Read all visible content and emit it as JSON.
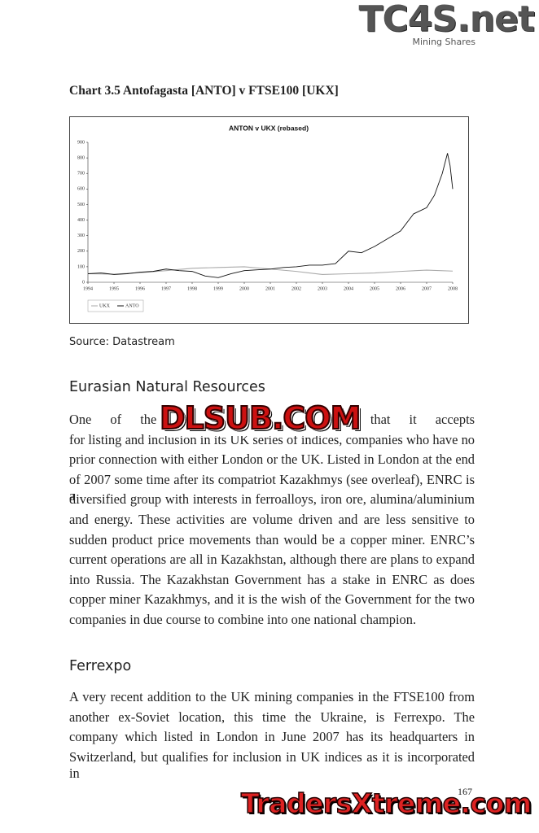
{
  "header": {
    "logo": "TC4S.net",
    "tagline": "Mining Shares"
  },
  "chart_caption": "Chart 3.5 Antofagasta [ANTO] v FTSE100 [UKX]",
  "chart_data": {
    "type": "line",
    "title": "ANTON v UKX (rebased)",
    "xlim": [
      1994,
      2008
    ],
    "xticks": [
      1994,
      1995,
      1996,
      1997,
      1998,
      1999,
      2000,
      2001,
      2002,
      2003,
      2004,
      2005,
      2006,
      2007,
      2008
    ],
    "ylim": [
      0,
      900
    ],
    "yticks": [
      0,
      100,
      200,
      300,
      400,
      500,
      600,
      700,
      800,
      900
    ],
    "legend": "bottom-left",
    "series": [
      {
        "name": "UKX",
        "color": "#aaaaaa",
        "x": [
          1994,
          1995,
          1996,
          1997,
          1998,
          1999,
          2000,
          2001,
          2002,
          2003,
          2004,
          2005,
          2006,
          2007,
          2008
        ],
        "values": [
          55,
          52,
          62,
          75,
          90,
          95,
          100,
          85,
          70,
          50,
          55,
          60,
          70,
          78,
          72
        ]
      },
      {
        "name": "ANTO",
        "color": "#111111",
        "x": [
          1994,
          1994.5,
          1995,
          1995.5,
          1996,
          1996.5,
          1997,
          1997.5,
          1998,
          1998.5,
          1999,
          1999.5,
          2000,
          2000.5,
          2001,
          2001.5,
          2002,
          2002.5,
          2003,
          2003.5,
          2004,
          2004.5,
          2005,
          2005.5,
          2006,
          2006.5,
          2007,
          2007.3,
          2007.6,
          2007.8,
          2007.9,
          2008
        ],
        "values": [
          55,
          60,
          50,
          55,
          65,
          70,
          85,
          75,
          70,
          40,
          30,
          55,
          75,
          80,
          85,
          95,
          100,
          110,
          110,
          120,
          200,
          190,
          230,
          280,
          330,
          440,
          480,
          560,
          700,
          830,
          750,
          600
        ]
      }
    ]
  },
  "source": "Source: Datastream",
  "sections": [
    {
      "heading": "Eurasian Natural Resources",
      "lines": [
        "One of the quirks of the FTSE is that it accepts",
        "for listing and inclusion in its UK series of indices, companies who have no",
        "prior connection with either London or the UK. Listed in London at the end",
        "of 2007 some time after its compatriot Kazakhmys (see overleaf), ENRC is a",
        "diversified group with interests in ferroalloys, iron ore, alumina/aluminium",
        "and energy.  These activities are volume driven and are less sensitive to",
        "sudden product price movements than would be a copper miner.   ENRC’s",
        "current operations are all in Kazakhstan, although there are plans to expand",
        "into Russia.  The Kazakhstan Government has a stake in ENRC as does",
        "copper miner Kazakhmys, and it is the wish of the Government for the two",
        "companies in due course to combine into one national champion."
      ]
    },
    {
      "heading": "Ferrexpo",
      "lines": [
        "A very recent addition to the UK mining companies in the FTSE100 from",
        "another ex-Soviet location, this time the Ukraine, is Ferrexpo.  The",
        "company which listed in London in June 2007 has its headquarters in",
        "Switzerland, but qualifies for inclusion in UK indices as it is incorporated in"
      ]
    }
  ],
  "page_number": "167",
  "watermarks": [
    "DLSUB.COM",
    "TradersXtreme.com"
  ]
}
